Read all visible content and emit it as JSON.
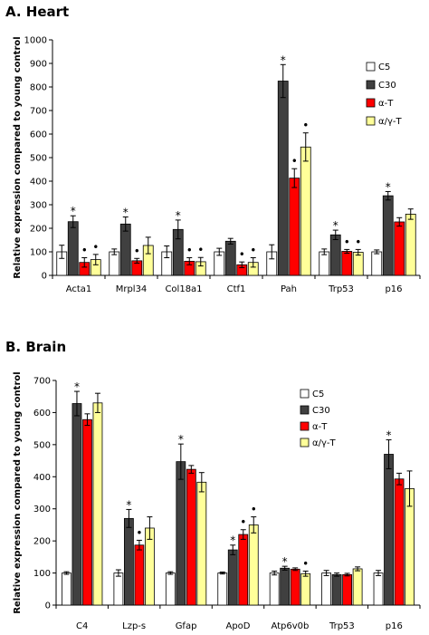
{
  "colors": {
    "C5": "#ffffff",
    "C30": "#404040",
    "alpha_T": "#ff0000",
    "alpha_gamma_T": "#ffff99"
  },
  "chart_data": [
    {
      "panel_title": "A. Heart",
      "type": "bar",
      "ylabel": "Relative expression compared to young control",
      "ylim": [
        0,
        1000
      ],
      "yticks": [
        0,
        100,
        200,
        300,
        400,
        500,
        600,
        700,
        800,
        900,
        1000
      ],
      "legend_position": "top-right",
      "categories": [
        "Acta1",
        "Mrpl34",
        "Col18a1",
        "Ctf1",
        "Pah",
        "Trp53",
        "p16"
      ],
      "series": [
        {
          "name": "C5",
          "values": [
            100,
            100,
            100,
            100,
            100,
            100,
            100
          ],
          "errors": [
            28,
            12,
            25,
            15,
            30,
            12,
            8
          ]
        },
        {
          "name": "C30",
          "values": [
            228,
            218,
            195,
            145,
            825,
            172,
            338
          ],
          "errors": [
            25,
            30,
            40,
            12,
            70,
            20,
            18
          ]
        },
        {
          "name": "α-T",
          "values": [
            55,
            62,
            60,
            45,
            413,
            102,
            227
          ],
          "errors": [
            20,
            10,
            15,
            12,
            40,
            8,
            18
          ]
        },
        {
          "name": "α/γ-T",
          "values": [
            67,
            127,
            58,
            55,
            545,
            98,
            260
          ],
          "errors": [
            22,
            35,
            18,
            20,
            60,
            12,
            22
          ]
        }
      ],
      "annotations": [
        {
          "category": "Acta1",
          "over": "C30",
          "mark": "*"
        },
        {
          "category": "Acta1",
          "over": "α-T",
          "mark": "•"
        },
        {
          "category": "Acta1",
          "over": "α/γ-T",
          "mark": "•"
        },
        {
          "category": "Mrpl34",
          "over": "C30",
          "mark": "*"
        },
        {
          "category": "Mrpl34",
          "over": "α-T",
          "mark": "•"
        },
        {
          "category": "Col18a1",
          "over": "C30",
          "mark": "*"
        },
        {
          "category": "Col18a1",
          "over": "α-T",
          "mark": "•"
        },
        {
          "category": "Col18a1",
          "over": "α/γ-T",
          "mark": "•"
        },
        {
          "category": "Ctf1",
          "over": "α-T",
          "mark": "•"
        },
        {
          "category": "Ctf1",
          "over": "α/γ-T",
          "mark": "•"
        },
        {
          "category": "Pah",
          "over": "C30",
          "mark": "*"
        },
        {
          "category": "Pah",
          "over": "α-T",
          "mark": "•"
        },
        {
          "category": "Pah",
          "over": "α/γ-T",
          "mark": "•"
        },
        {
          "category": "Trp53",
          "over": "C30",
          "mark": "*"
        },
        {
          "category": "Trp53",
          "over": "α-T",
          "mark": "•"
        },
        {
          "category": "Trp53",
          "over": "α/γ-T",
          "mark": "•"
        },
        {
          "category": "p16",
          "over": "C30",
          "mark": "*"
        }
      ]
    },
    {
      "panel_title": "B. Brain",
      "type": "bar",
      "ylabel": "Relative expression compared to young control",
      "ylim": [
        0,
        700
      ],
      "yticks": [
        0,
        100,
        200,
        300,
        400,
        500,
        600,
        700
      ],
      "legend_position": "top-right",
      "categories": [
        "C4",
        "Lzp-s",
        "Gfap",
        "ApoD",
        "Atp6v0b",
        "Trp53",
        "p16"
      ],
      "series": [
        {
          "name": "C5",
          "values": [
            100,
            100,
            100,
            100,
            100,
            100,
            100
          ],
          "errors": [
            4,
            10,
            4,
            3,
            6,
            8,
            8
          ]
        },
        {
          "name": "C30",
          "values": [
            628,
            270,
            447,
            172,
            115,
            95,
            470
          ],
          "errors": [
            38,
            28,
            55,
            15,
            6,
            5,
            45
          ]
        },
        {
          "name": "α-T",
          "values": [
            578,
            187,
            423,
            220,
            112,
            95,
            393
          ],
          "errors": [
            18,
            15,
            12,
            15,
            4,
            4,
            18
          ]
        },
        {
          "name": "α/γ-T",
          "values": [
            630,
            240,
            383,
            250,
            98,
            113,
            363
          ],
          "errors": [
            30,
            35,
            30,
            25,
            8,
            6,
            55
          ]
        }
      ],
      "annotations": [
        {
          "category": "C4",
          "over": "C30",
          "mark": "*"
        },
        {
          "category": "Lzp-s",
          "over": "C30",
          "mark": "*"
        },
        {
          "category": "Lzp-s",
          "over": "α-T",
          "mark": "•"
        },
        {
          "category": "Gfap",
          "over": "C30",
          "mark": "*"
        },
        {
          "category": "ApoD",
          "over": "C30",
          "mark": "*"
        },
        {
          "category": "ApoD",
          "over": "α-T",
          "mark": "•"
        },
        {
          "category": "ApoD",
          "over": "α/γ-T",
          "mark": "•"
        },
        {
          "category": "Atp6v0b",
          "over": "C30",
          "mark": "*"
        },
        {
          "category": "Atp6v0b",
          "over": "α/γ-T",
          "mark": "•"
        },
        {
          "category": "p16",
          "over": "C30",
          "mark": "*"
        }
      ]
    }
  ]
}
